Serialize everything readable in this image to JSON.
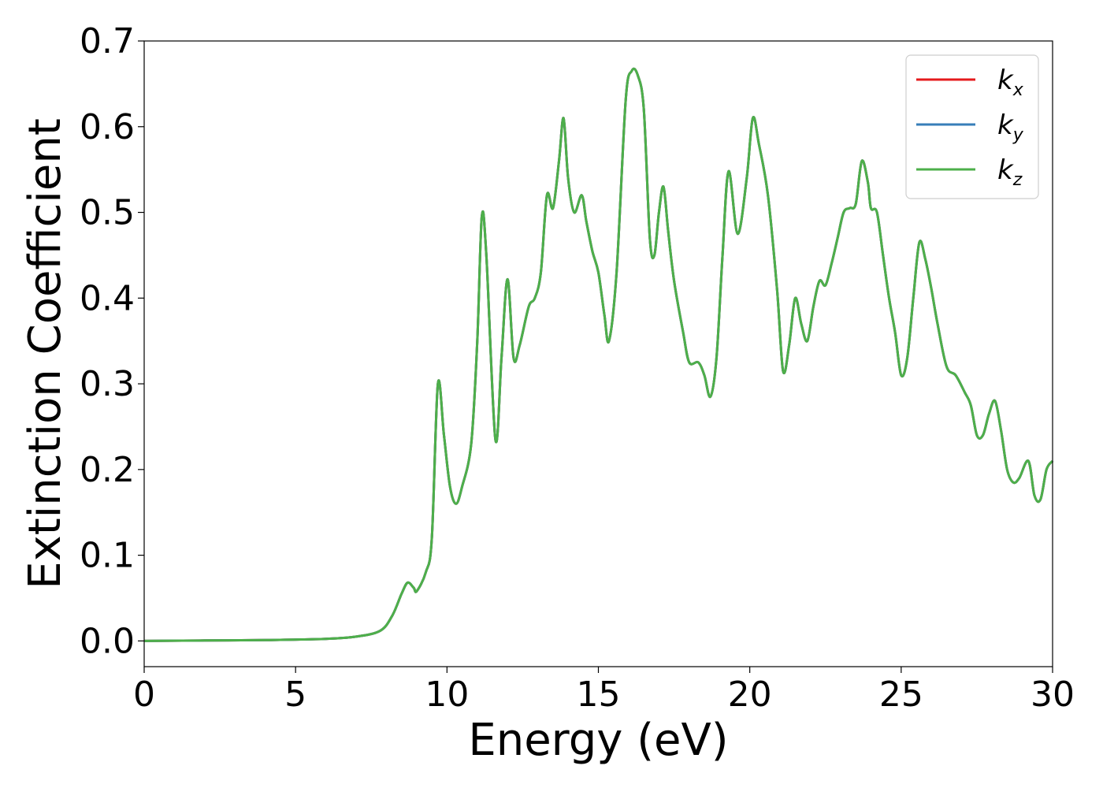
{
  "chart_data": {
    "type": "line",
    "xlabel": "Energy (eV)",
    "ylabel": "Extinction Coefficient",
    "xlim": [
      0,
      30
    ],
    "ylim": [
      -0.03,
      0.7
    ],
    "xticks": [
      "0",
      "5",
      "10",
      "15",
      "20",
      "25",
      "30"
    ],
    "yticks": [
      "0.0",
      "0.1",
      "0.2",
      "0.3",
      "0.4",
      "0.5",
      "0.6",
      "0.7"
    ],
    "grid": false,
    "legend_position": "top-right",
    "series": [
      {
        "name": "k",
        "subscript": "x",
        "color": "#e41a1c"
      },
      {
        "name": "k",
        "subscript": "y",
        "color": "#377eb8"
      },
      {
        "name": "k",
        "subscript": "z",
        "color": "#4daf4a"
      }
    ],
    "shared_curve": {
      "x": [
        0,
        2,
        4,
        6,
        7,
        7.8,
        8.2,
        8.5,
        8.7,
        8.9,
        9.0,
        9.3,
        9.5,
        9.7,
        9.9,
        10.1,
        10.3,
        10.5,
        10.8,
        11.0,
        11.15,
        11.3,
        11.6,
        11.8,
        12.0,
        12.2,
        12.4,
        12.7,
        12.9,
        13.1,
        13.3,
        13.5,
        13.7,
        13.85,
        14.0,
        14.2,
        14.45,
        14.6,
        14.8,
        15.0,
        15.2,
        15.35,
        15.6,
        15.9,
        16.1,
        16.3,
        16.5,
        16.7,
        16.85,
        17.0,
        17.15,
        17.3,
        17.5,
        17.8,
        18.0,
        18.3,
        18.5,
        18.7,
        18.9,
        19.1,
        19.3,
        19.6,
        19.9,
        20.1,
        20.3,
        20.6,
        20.9,
        21.1,
        21.3,
        21.5,
        21.7,
        21.9,
        22.1,
        22.3,
        22.5,
        22.7,
        22.9,
        23.1,
        23.3,
        23.5,
        23.7,
        23.9,
        24.0,
        24.2,
        24.4,
        24.6,
        24.8,
        25.0,
        25.2,
        25.4,
        25.6,
        25.8,
        26.0,
        26.2,
        26.5,
        26.8,
        27.1,
        27.3,
        27.5,
        27.7,
        27.9,
        28.1,
        28.3,
        28.5,
        28.7,
        28.9,
        29.2,
        29.4,
        29.6,
        29.8,
        30.0
      ],
      "y": [
        0.0,
        0.0005,
        0.001,
        0.0025,
        0.005,
        0.012,
        0.03,
        0.055,
        0.068,
        0.062,
        0.058,
        0.08,
        0.12,
        0.3,
        0.24,
        0.18,
        0.16,
        0.18,
        0.23,
        0.35,
        0.495,
        0.45,
        0.235,
        0.33,
        0.422,
        0.33,
        0.345,
        0.39,
        0.4,
        0.43,
        0.52,
        0.505,
        0.56,
        0.61,
        0.54,
        0.5,
        0.52,
        0.49,
        0.455,
        0.43,
        0.38,
        0.35,
        0.43,
        0.63,
        0.665,
        0.66,
        0.62,
        0.47,
        0.45,
        0.5,
        0.53,
        0.48,
        0.42,
        0.36,
        0.325,
        0.325,
        0.31,
        0.285,
        0.33,
        0.45,
        0.548,
        0.475,
        0.54,
        0.61,
        0.58,
        0.52,
        0.41,
        0.315,
        0.345,
        0.4,
        0.37,
        0.35,
        0.39,
        0.42,
        0.415,
        0.44,
        0.47,
        0.5,
        0.505,
        0.51,
        0.56,
        0.535,
        0.505,
        0.5,
        0.45,
        0.4,
        0.36,
        0.31,
        0.33,
        0.4,
        0.465,
        0.445,
        0.41,
        0.37,
        0.32,
        0.31,
        0.29,
        0.275,
        0.24,
        0.24,
        0.265,
        0.28,
        0.245,
        0.2,
        0.185,
        0.19,
        0.21,
        0.17,
        0.165,
        0.2,
        0.21
      ]
    }
  }
}
